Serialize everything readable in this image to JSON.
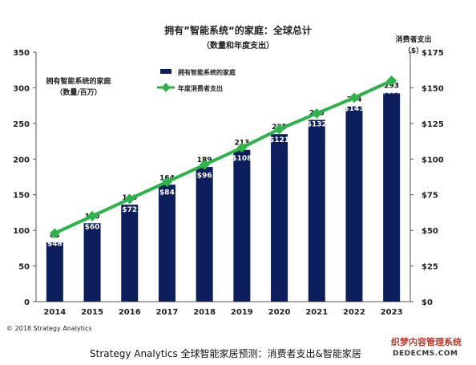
{
  "chart_data": {
    "type": "bar",
    "title": "拥有”智能系统“的家庭：全球总计",
    "subtitle": "（数量和年度支出）",
    "categories": [
      "2014",
      "2015",
      "2016",
      "2017",
      "2018",
      "2019",
      "2020",
      "2021",
      "2022",
      "2023"
    ],
    "series": [
      {
        "name": "拥有智能系统的家庭",
        "kind": "bar",
        "axis": "left",
        "values": [
          83,
          110,
          136,
          164,
          189,
          213,
          235,
          255,
          274,
          293
        ]
      },
      {
        "name": "年度消费者支出",
        "kind": "line",
        "axis": "right",
        "values": [
          48,
          60,
          72,
          84,
          96,
          108,
          121,
          132,
          143,
          155
        ],
        "labels": [
          "$48",
          "$60",
          "$72",
          "$84",
          "$96",
          "$108",
          "$121",
          "$132",
          "$143",
          "$155"
        ]
      }
    ],
    "left_axis": {
      "label_lines": [
        "拥有智能系统的家庭",
        "（数量/百万）"
      ],
      "ylim": [
        0,
        350
      ],
      "ticks": [
        "0",
        "50",
        "100",
        "150",
        "200",
        "250",
        "300",
        "350"
      ]
    },
    "right_axis": {
      "label_lines": [
        "消费者支出",
        "（$）"
      ],
      "ylim": [
        0,
        175
      ],
      "ticks": [
        "$0",
        "$25",
        "$50",
        "$75",
        "$100",
        "$125",
        "$150",
        "$175"
      ]
    },
    "colors": {
      "bar": "#0d1e5c",
      "line": "#2bb44a",
      "marker": "#2bb44a"
    },
    "legend_position": "top-left",
    "grid": false
  },
  "footer": {
    "copyright": "© 2018 Strategy Analytics",
    "caption": "Strategy Analytics 全球智能家居预测：消费者支出&智能家居"
  },
  "watermark": {
    "line1": "织梦内容管理系统",
    "line2": "DEDECMS.COM"
  }
}
